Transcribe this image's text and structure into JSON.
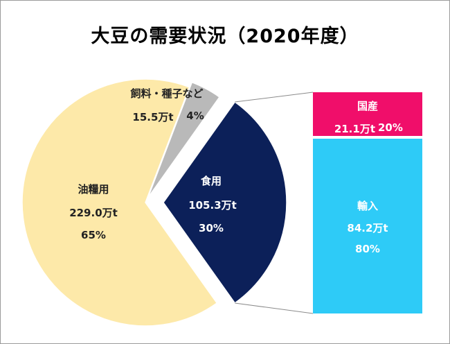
{
  "title": "大豆の需要状況（2020年度）",
  "colors": {
    "oil": "#fde9a9",
    "feed": "#b9b9b9",
    "food": "#0c2059",
    "domestic": "#f00e6a",
    "import": "#2ecbf7",
    "connector": "#8a8a8a"
  },
  "chart_data": [
    {
      "type": "pie",
      "title": "大豆の需要状況（2020年度）",
      "slices": [
        {
          "name": "油糧用",
          "amount": "229.0万t",
          "share": "65%",
          "value": 65
        },
        {
          "name": "飼料・種子など",
          "amount": "15.5万t",
          "share": "4%",
          "value": 4
        },
        {
          "name": "食用",
          "amount": "105.3万t",
          "share": "30%",
          "value": 30
        }
      ]
    },
    {
      "type": "bar",
      "stacked": true,
      "breakdown_of": "食用",
      "segments": [
        {
          "name": "国産",
          "amount": "21.1万t",
          "share": "20%",
          "value": 20
        },
        {
          "name": "輸入",
          "amount": "84.2万t",
          "share": "80%",
          "value": 80
        }
      ]
    }
  ]
}
